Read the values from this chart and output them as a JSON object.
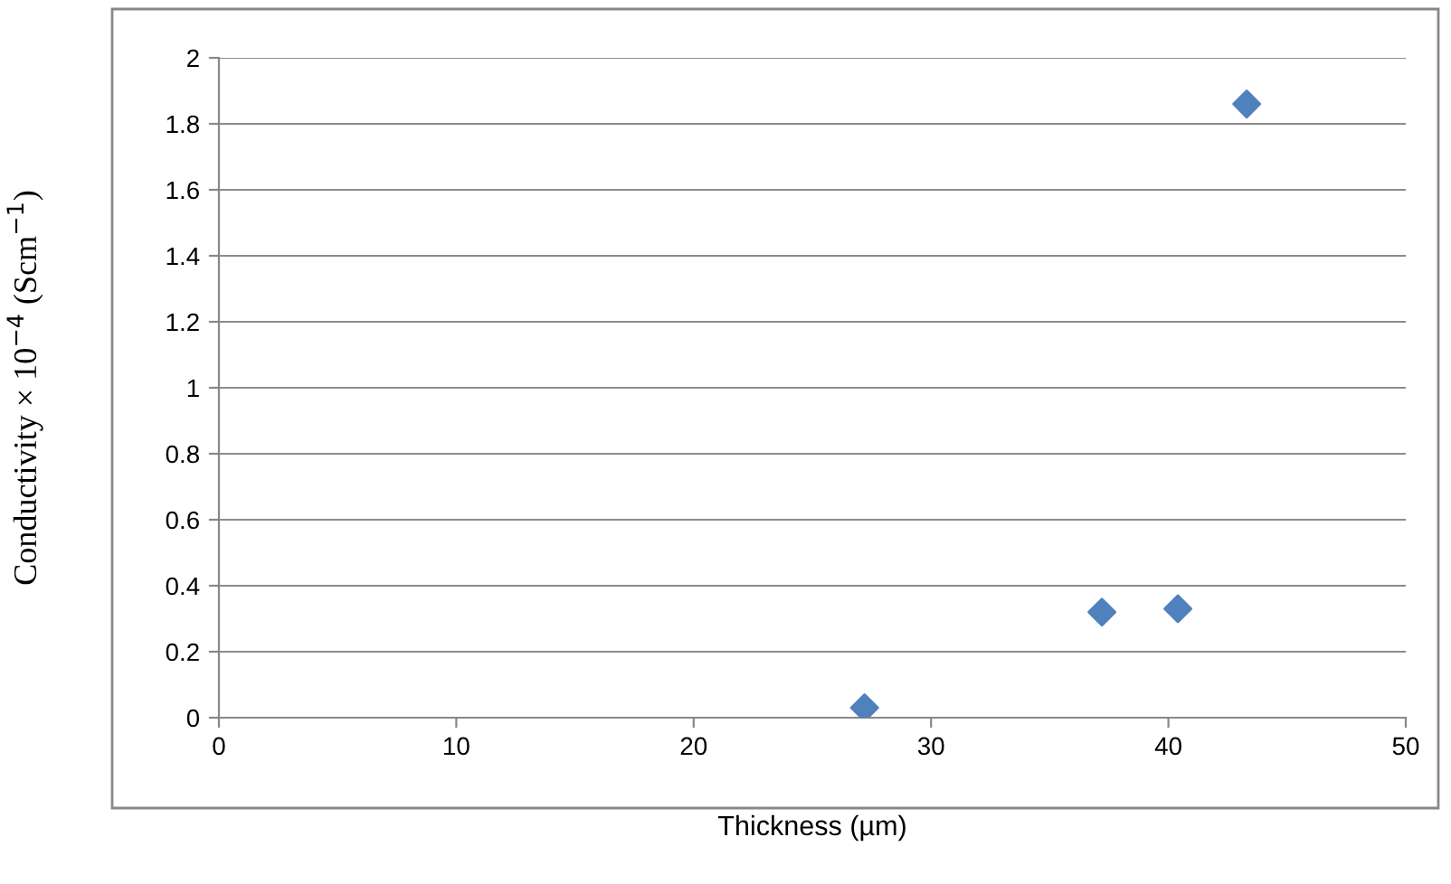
{
  "chart_data": {
    "type": "scatter",
    "xlabel": "Thickness (µm)",
    "ylabel": "Conductivity × 10$^{−4}$ (Scm$^{−1}$)",
    "x": [
      27.2,
      37.2,
      40.4,
      43.3
    ],
    "series": [
      {
        "color": "#4f81bd",
        "values": [
          0.03,
          0.32,
          0.33,
          1.86
        ]
      }
    ],
    "xlim": [
      0,
      50
    ],
    "xticks": [
      0,
      10,
      20,
      30,
      40,
      50
    ],
    "ylim": [
      0,
      2
    ],
    "yticks": [
      0,
      0.2,
      0.4,
      0.6,
      0.8,
      1,
      1.2,
      1.4,
      1.6,
      1.8,
      2
    ],
    "grid": "y",
    "marker": "diamond",
    "legend": false
  }
}
